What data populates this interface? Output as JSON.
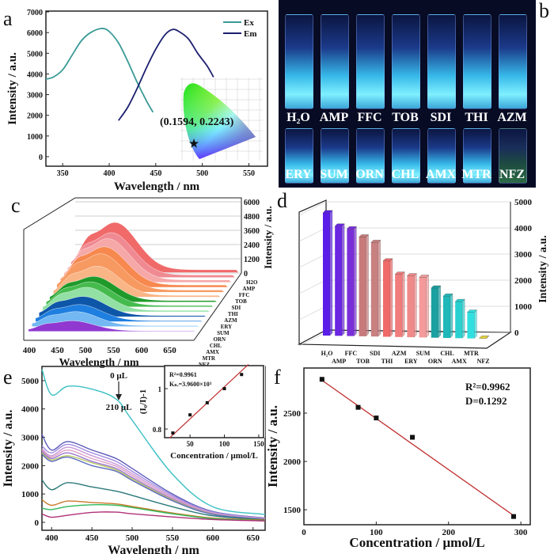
{
  "panel_labels": {
    "a": "a",
    "b": "b",
    "c": "c",
    "d": "d",
    "e": "e",
    "f": "f"
  },
  "photo_b": {
    "row1": [
      "H₂O",
      "AMP",
      "FFC",
      "TOB",
      "SDI",
      "THI",
      "AZM"
    ],
    "row2": [
      "ERY",
      "SUM",
      "ORN",
      "CHL",
      "AMX",
      "MTR",
      "NFZ"
    ]
  },
  "chart_data": [
    {
      "id": "a",
      "type": "line",
      "xlabel": "Wavelength / nm",
      "ylabel": "Intensity / a.u.",
      "xlim": [
        332,
        570
      ],
      "ylim": [
        -460,
        7040
      ],
      "xticks": [
        350,
        400,
        450,
        500,
        550
      ],
      "yticks": [
        0,
        1000,
        2000,
        3000,
        4000,
        5000,
        6000,
        7000
      ],
      "legend_position": "top-right",
      "series": [
        {
          "name": "Ex",
          "color": "#3a9a96",
          "points": [
            [
              332,
              3750
            ],
            [
              340,
              3850
            ],
            [
              350,
              4200
            ],
            [
              360,
              4900
            ],
            [
              370,
              5600
            ],
            [
              380,
              6000
            ],
            [
              392,
              6200
            ],
            [
              400,
              6050
            ],
            [
              410,
              5500
            ],
            [
              420,
              4600
            ],
            [
              430,
              3600
            ],
            [
              440,
              2700
            ],
            [
              447,
              2150
            ]
          ]
        },
        {
          "name": "Em",
          "color": "#1c1f6e",
          "points": [
            [
              410,
              1750
            ],
            [
              420,
              2400
            ],
            [
              430,
              3300
            ],
            [
              440,
              4300
            ],
            [
              450,
              5200
            ],
            [
              460,
              5900
            ],
            [
              468,
              6150
            ],
            [
              475,
              6050
            ],
            [
              485,
              5700
            ],
            [
              495,
              5000
            ],
            [
              505,
              4400
            ],
            [
              512,
              3850
            ]
          ]
        }
      ],
      "inset": {
        "type": "cie-chromaticity",
        "coordinate_label": "(0.1594, 0.2243)",
        "point": [
          0.1594,
          0.2243
        ]
      }
    },
    {
      "id": "c",
      "type": "area",
      "xlabel": "Wavelength / nm",
      "zlabel": "Intensity / a.u.",
      "xticks": [
        400,
        450,
        500,
        550,
        600,
        650
      ],
      "zticks": [
        0,
        1200,
        2400,
        3600,
        4800,
        6000
      ],
      "categories": [
        "H2O",
        "AMP",
        "FFC",
        "TOB",
        "SDI",
        "THI",
        "AZM",
        "ERY",
        "SUM",
        "ORN",
        "CHL",
        "AMX",
        "MTR",
        "NFZ"
      ],
      "peak_values": [
        4700,
        4200,
        4100,
        3800,
        3600,
        2900,
        2400,
        2350,
        2300,
        1900,
        1600,
        1400,
        1000,
        20
      ],
      "colors": [
        "#f06a6a",
        "#f08a92",
        "#f6a8a8",
        "#f7884e",
        "#f79a62",
        "#f9b586",
        "#1f9a2a",
        "#45bb4e",
        "#92e0a4",
        "#0e56a8",
        "#1f7fe0",
        "#73b8f2",
        "#9038d0",
        "#c67fe0"
      ]
    },
    {
      "id": "d",
      "type": "bar",
      "ylabel": "Intensity / a.u.",
      "ylim": [
        0,
        5000
      ],
      "yticks": [
        0,
        1000,
        2000,
        3000,
        4000,
        5000
      ],
      "categories": [
        "H₂O",
        "AMP",
        "FFC",
        "TOB",
        "SDI",
        "THI",
        "AZM",
        "ERY",
        "SUM",
        "ORN",
        "CHL",
        "AMX",
        "MTR",
        "NFZ"
      ],
      "values": [
        4700,
        4200,
        4100,
        3800,
        3600,
        2900,
        2400,
        2350,
        2300,
        1900,
        1600,
        1400,
        1000,
        20
      ],
      "colors": [
        "#5a1ee8",
        "#6a26e0",
        "#7a2ed8",
        "#c87a7a",
        "#c88080",
        "#f06a6a",
        "#f07c7c",
        "#f08a8a",
        "#f49a9a",
        "#1aa0a0",
        "#20b8b8",
        "#2ad0d0",
        "#30e0e0",
        "#e0d040"
      ]
    },
    {
      "id": "e",
      "type": "line",
      "xlabel": "Wavelength / nm",
      "ylabel": "Intensity / a.u.",
      "xlim": [
        388,
        665
      ],
      "ylim": [
        -280,
        5500
      ],
      "xticks": [
        400,
        450,
        500,
        550,
        600,
        650
      ],
      "yticks": [
        0,
        1000,
        2000,
        3000,
        4000,
        5000
      ],
      "annotation_top": "0 μL",
      "annotation_bottom": "210 μL",
      "x": [
        388,
        400,
        420,
        450,
        480,
        500,
        550,
        600,
        665
      ],
      "series": [
        {
          "color": "#3cc0c4",
          "values": [
            5400,
            4500,
            4800,
            4700,
            4350,
            3600,
            1700,
            550,
            280
          ]
        },
        {
          "color": "#5a5ab8",
          "values": [
            3100,
            2550,
            2850,
            2550,
            2250,
            1900,
            1000,
            380,
            150
          ]
        },
        {
          "color": "#a08ae0",
          "values": [
            2700,
            2450,
            2750,
            2450,
            2150,
            1800,
            950,
            360,
            140
          ]
        },
        {
          "color": "#c89ad8",
          "values": [
            2600,
            2350,
            2650,
            2350,
            2050,
            1720,
            900,
            340,
            130
          ]
        },
        {
          "color": "#e0a0c8",
          "values": [
            2550,
            2300,
            2550,
            2250,
            1980,
            1650,
            860,
            320,
            120
          ]
        },
        {
          "color": "#9a78d0",
          "values": [
            2500,
            2250,
            2450,
            2150,
            1900,
            1580,
            820,
            300,
            110
          ]
        },
        {
          "color": "#b8c860",
          "values": [
            2450,
            2200,
            2350,
            2100,
            1850,
            1530,
            790,
            290,
            100
          ]
        },
        {
          "color": "#5a6ac0",
          "values": [
            2400,
            2150,
            2300,
            2000,
            1800,
            1480,
            760,
            280,
            100
          ]
        },
        {
          "color": "#2a7878",
          "values": [
            1500,
            1150,
            1400,
            1250,
            1100,
            950,
            550,
            230,
            90
          ]
        },
        {
          "color": "#c87a2a",
          "values": [
            800,
            600,
            750,
            700,
            650,
            560,
            330,
            150,
            80
          ]
        },
        {
          "color": "#30b85a",
          "values": [
            500,
            450,
            560,
            620,
            600,
            520,
            300,
            130,
            60
          ]
        },
        {
          "color": "#b03078",
          "values": [
            300,
            180,
            250,
            350,
            360,
            300,
            190,
            100,
            50
          ]
        }
      ],
      "inset": {
        "type": "scatter",
        "xlabel": "Concentration / μmol/L",
        "ylabel": "(I₀/I)-1",
        "xlim": [
          13,
          157
        ],
        "ylim": [
          0.757,
          1.114
        ],
        "xticks": [
          50,
          100,
          150
        ],
        "yticks": [
          0.8,
          1.0
        ],
        "r2": "R²=0.9961",
        "ksv": "Kₛᵥ=3.9600×10³",
        "points": [
          [
            25,
            0.78
          ],
          [
            50,
            0.87
          ],
          [
            75,
            0.93
          ],
          [
            100,
            1.0
          ],
          [
            125,
            1.07
          ]
        ],
        "fit": [
          [
            20,
            0.755
          ],
          [
            135,
            1.12
          ]
        ],
        "fit_color": "#c03030"
      }
    },
    {
      "id": "f",
      "type": "scatter",
      "xlabel": "Concentration / μmol/L",
      "ylabel": "Intensity / a.u.",
      "xlim": [
        0,
        313
      ],
      "ylim": [
        1345,
        2967
      ],
      "xticks": [
        0,
        100,
        200,
        300
      ],
      "yticks": [
        1500,
        2000,
        2500
      ],
      "r2": "R²=0.9962",
      "d_value": "D=0.1292",
      "points": [
        [
          25,
          2850
        ],
        [
          75,
          2560
        ],
        [
          100,
          2450
        ],
        [
          150,
          2250
        ],
        [
          290,
          1430
        ]
      ],
      "fit": [
        [
          25,
          2840
        ],
        [
          290,
          1440
        ]
      ],
      "fit_color": "#c03030"
    }
  ]
}
